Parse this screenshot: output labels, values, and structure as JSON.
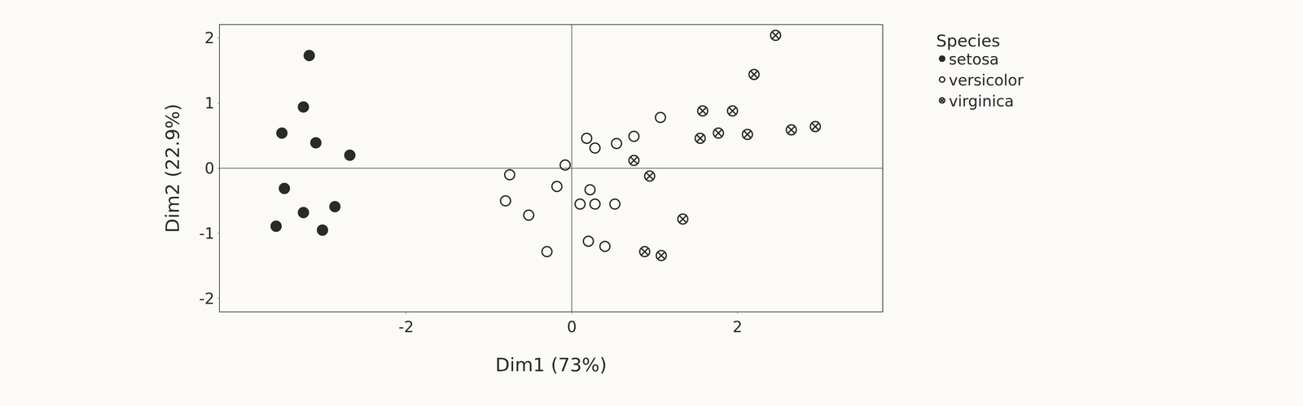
{
  "chart_data": {
    "type": "scatter",
    "x_label": "Dim1 (73%)",
    "y_label": "Dim2 (22.9%)",
    "legend_title": "Species",
    "legend": "right",
    "grid": false,
    "xlim": [
      -4.25,
      3.75
    ],
    "ylim": [
      -2.2,
      2.2
    ],
    "xticks": [
      -2,
      0,
      2
    ],
    "yticks": [
      -2,
      -1,
      0,
      1,
      2
    ],
    "series": [
      {
        "name": "setosa",
        "color": "#2a2a2a",
        "marker": "filled",
        "x": [
          -3.17,
          -3.24,
          -3.5,
          -3.09,
          -2.68,
          -3.47,
          -3.24,
          -2.86,
          -3.57,
          -3.01
        ],
        "y": [
          1.73,
          0.94,
          0.54,
          0.39,
          0.2,
          -0.31,
          -0.68,
          -0.59,
          -0.89,
          -0.95
        ]
      },
      {
        "name": "versicolor",
        "color": "#2a2a2a",
        "marker": "open",
        "x": [
          -0.75,
          -0.8,
          -0.52,
          -0.18,
          0.22,
          0.1,
          0.28,
          0.52,
          -0.3,
          0.2,
          0.4,
          0.18,
          0.28,
          0.54,
          0.75,
          1.07,
          -0.08
        ],
        "y": [
          -0.1,
          -0.5,
          -0.72,
          -0.28,
          -0.33,
          -0.55,
          -0.55,
          -0.55,
          -1.28,
          -1.12,
          -1.2,
          0.46,
          0.31,
          0.38,
          0.49,
          0.78,
          0.05
        ]
      },
      {
        "name": "virginica",
        "color": "#2a2a2a",
        "marker": "hatched",
        "x": [
          2.46,
          2.2,
          1.58,
          1.94,
          1.55,
          1.77,
          2.12,
          2.65,
          2.94,
          0.75,
          0.94,
          1.34,
          0.88,
          1.08
        ],
        "y": [
          2.04,
          1.44,
          0.88,
          0.88,
          0.46,
          0.54,
          0.52,
          0.59,
          0.64,
          0.12,
          -0.12,
          -0.78,
          -1.28,
          -1.34
        ]
      }
    ]
  }
}
